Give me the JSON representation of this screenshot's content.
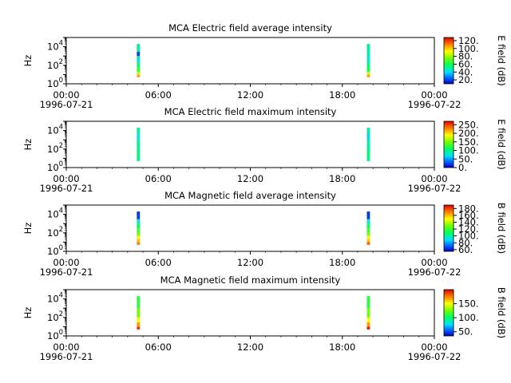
{
  "chart_data": [
    {
      "type": "heatmap",
      "title": "MCA  Electric field average intensity",
      "ylabel": "Hz",
      "y_scale": "log",
      "ylim": [
        1,
        100000
      ],
      "y_ticks": [
        {
          "base": "10",
          "exp": "0"
        },
        {
          "base": "10",
          "exp": "2"
        },
        {
          "base": "10",
          "exp": "4"
        }
      ],
      "x_ticks": [
        "00:00",
        "06:00",
        "12:00",
        "18:00",
        "00:00"
      ],
      "x_dates": [
        "1996-07-21",
        "1996-07-22"
      ],
      "xlim_hours": [
        0,
        24
      ],
      "colorbar": {
        "label": "E field (dB)",
        "range": [
          10,
          128
        ],
        "ticks": [
          "20.",
          "40.",
          "60.",
          "80.",
          "100.",
          "120."
        ]
      },
      "passes": [
        {
          "start_hour": 4.6,
          "end_hour": 4.8,
          "freq_range": [
            5,
            20000
          ],
          "bins": [
            [
              5,
              10,
              105
            ],
            [
              10,
              20,
              85
            ],
            [
              20,
              60,
              65
            ],
            [
              60,
              200,
              55
            ],
            [
              200,
              1000,
              45
            ],
            [
              1000,
              3000,
              20
            ],
            [
              3000,
              20000,
              50
            ]
          ]
        },
        {
          "start_hour": 19.6,
          "end_hour": 19.8,
          "freq_range": [
            5,
            20000
          ],
          "bins": [
            [
              5,
              10,
              105
            ],
            [
              10,
              20,
              85
            ],
            [
              20,
              60,
              60
            ],
            [
              60,
              200,
              55
            ],
            [
              200,
              2000,
              45
            ],
            [
              2000,
              20000,
              50
            ]
          ]
        }
      ]
    },
    {
      "type": "heatmap",
      "title": "MCA  Electric field maximum intensity",
      "ylabel": "Hz",
      "y_scale": "log",
      "ylim": [
        1,
        100000
      ],
      "y_ticks": [
        {
          "base": "10",
          "exp": "0"
        },
        {
          "base": "10",
          "exp": "2"
        },
        {
          "base": "10",
          "exp": "4"
        }
      ],
      "x_ticks": [
        "00:00",
        "06:00",
        "12:00",
        "18:00",
        "00:00"
      ],
      "x_dates": [
        "1996-07-21",
        "1996-07-22"
      ],
      "xlim_hours": [
        0,
        24
      ],
      "colorbar": {
        "label": "E field (dB)",
        "range": [
          0,
          270
        ],
        "ticks": [
          "0.",
          "50.",
          "100.",
          "150.",
          "200.",
          "250."
        ]
      },
      "passes": [
        {
          "start_hour": 4.6,
          "end_hour": 4.8,
          "freq_range": [
            5,
            20000
          ],
          "bins": [
            [
              5,
              100,
              100
            ],
            [
              100,
              1000,
              95
            ],
            [
              1000,
              5000,
              75
            ],
            [
              5000,
              20000,
              95
            ]
          ]
        },
        {
          "start_hour": 19.6,
          "end_hour": 19.8,
          "freq_range": [
            5,
            20000
          ],
          "bins": [
            [
              5,
              100,
              100
            ],
            [
              100,
              1000,
              90
            ],
            [
              1000,
              5000,
              65
            ],
            [
              5000,
              20000,
              90
            ]
          ]
        }
      ]
    },
    {
      "type": "heatmap",
      "title": "MCA  Magnetic field average intensity",
      "ylabel": "Hz",
      "y_scale": "log",
      "ylim": [
        1,
        100000
      ],
      "y_ticks": [
        {
          "base": "10",
          "exp": "0"
        },
        {
          "base": "10",
          "exp": "2"
        },
        {
          "base": "10",
          "exp": "4"
        }
      ],
      "x_ticks": [
        "00:00",
        "06:00",
        "12:00",
        "18:00",
        "00:00"
      ],
      "x_dates": [
        "1996-07-21",
        "1996-07-22"
      ],
      "xlim_hours": [
        0,
        24
      ],
      "colorbar": {
        "label": "B field (dB)",
        "range": [
          55,
          190
        ],
        "ticks": [
          "60.",
          "80.",
          "100.",
          "120.",
          "140.",
          "160.",
          "180."
        ]
      },
      "passes": [
        {
          "start_hour": 4.6,
          "end_hour": 4.8,
          "freq_range": [
            5,
            20000
          ],
          "bins": [
            [
              5,
              10,
              170
            ],
            [
              10,
              20,
              160
            ],
            [
              20,
              50,
              145
            ],
            [
              50,
              100,
              130
            ],
            [
              100,
              300,
              120
            ],
            [
              300,
              1000,
              110
            ],
            [
              1000,
              3000,
              95
            ],
            [
              3000,
              20000,
              65
            ]
          ]
        },
        {
          "start_hour": 19.6,
          "end_hour": 19.8,
          "freq_range": [
            5,
            20000
          ],
          "bins": [
            [
              5,
              10,
              175
            ],
            [
              10,
              20,
              160
            ],
            [
              20,
              50,
              145
            ],
            [
              50,
              100,
              130
            ],
            [
              100,
              300,
              120
            ],
            [
              300,
              1000,
              110
            ],
            [
              1000,
              3000,
              95
            ],
            [
              3000,
              20000,
              65
            ]
          ]
        }
      ]
    },
    {
      "type": "heatmap",
      "title": "MCA  Magnetic field maximum intensity",
      "ylabel": "Hz",
      "y_scale": "log",
      "ylim": [
        1,
        100000
      ],
      "y_ticks": [
        {
          "base": "10",
          "exp": "0"
        },
        {
          "base": "10",
          "exp": "2"
        },
        {
          "base": "10",
          "exp": "4"
        }
      ],
      "x_ticks": [
        "00:00",
        "06:00",
        "12:00",
        "18:00",
        "00:00"
      ],
      "x_dates": [
        "1996-07-21",
        "1996-07-22"
      ],
      "xlim_hours": [
        0,
        24
      ],
      "colorbar": {
        "label": "B field (dB)",
        "range": [
          35,
          200
        ],
        "ticks": [
          "50.",
          "100.",
          "150."
        ]
      },
      "passes": [
        {
          "start_hour": 4.6,
          "end_hour": 4.8,
          "freq_range": [
            5,
            20000
          ],
          "bins": [
            [
              5,
              10,
              190
            ],
            [
              10,
              30,
              170
            ],
            [
              30,
              100,
              150
            ],
            [
              100,
              1000,
              125
            ],
            [
              1000,
              20000,
              110
            ]
          ]
        },
        {
          "start_hour": 19.6,
          "end_hour": 19.8,
          "freq_range": [
            5,
            20000
          ],
          "bins": [
            [
              5,
              10,
              195
            ],
            [
              10,
              30,
              170
            ],
            [
              30,
              100,
              150
            ],
            [
              100,
              1000,
              125
            ],
            [
              1000,
              20000,
              110
            ]
          ]
        }
      ]
    }
  ]
}
